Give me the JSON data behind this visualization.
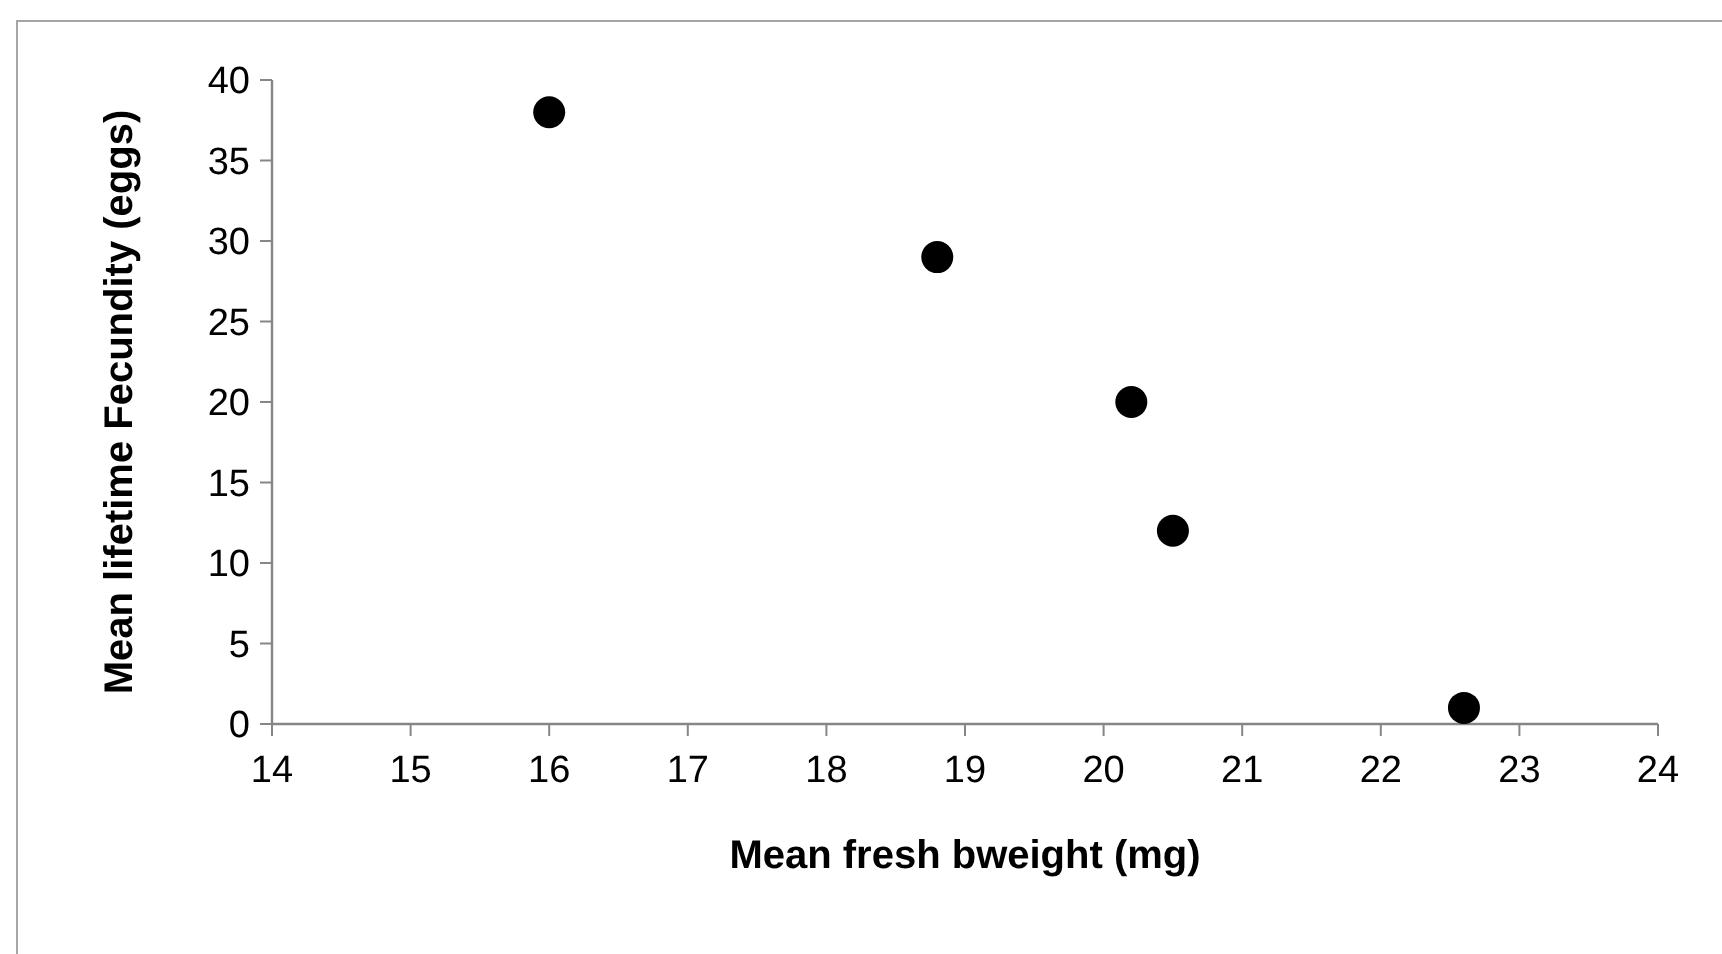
{
  "chart_data": {
    "type": "scatter",
    "xlabel": "Mean fresh bweight (mg)",
    "ylabel": "Mean lifetime Fecundity (eggs)",
    "x": [
      16,
      18.8,
      20.2,
      20.5,
      22.6
    ],
    "series": [
      {
        "color": "#000000",
        "values": [
          38,
          29,
          20,
          12,
          1
        ]
      }
    ],
    "xlim": [
      14,
      24
    ],
    "xticks": [
      14,
      15,
      16,
      17,
      18,
      19,
      20,
      21,
      22,
      23,
      24
    ],
    "ylim": [
      0,
      40
    ],
    "yticks": [
      0,
      5,
      10,
      15,
      20,
      25,
      30,
      35,
      40
    ],
    "marker": "circle",
    "grid": false
  }
}
